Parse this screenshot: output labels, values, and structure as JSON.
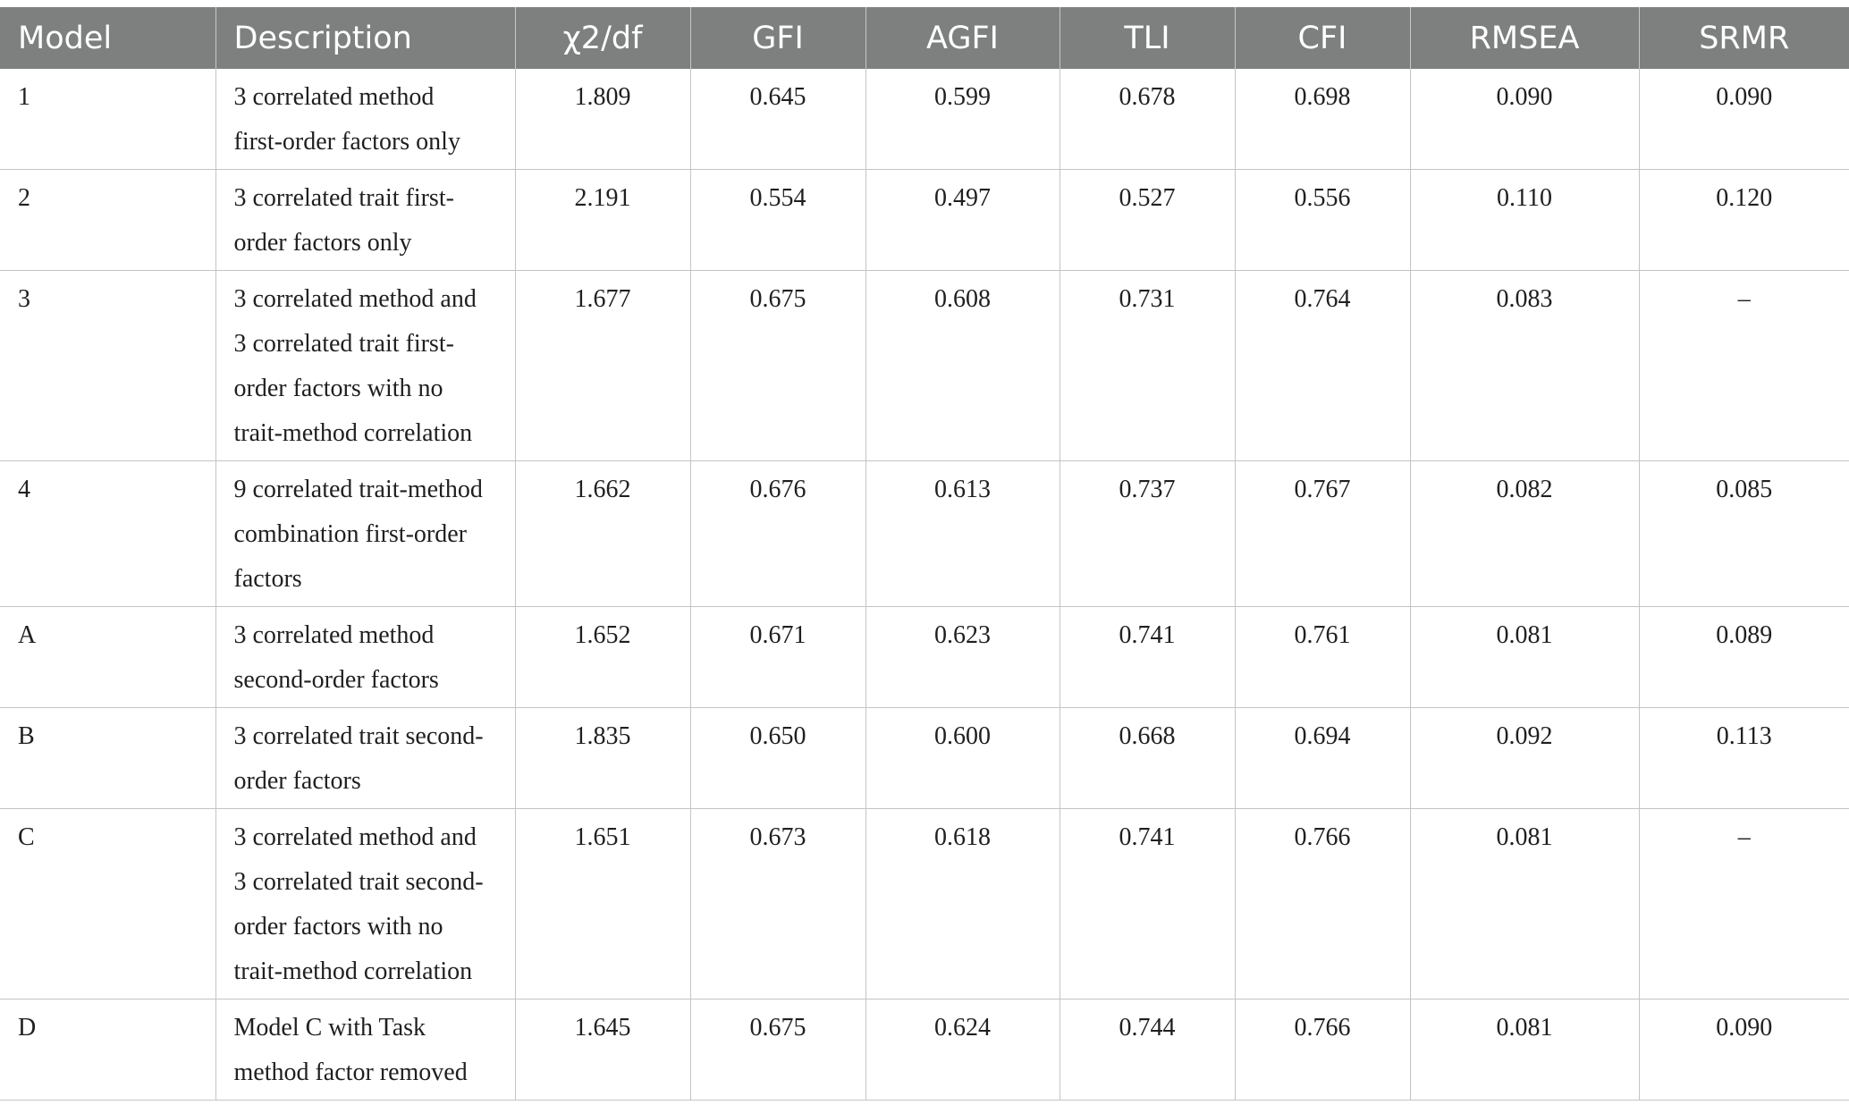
{
  "table": {
    "headers": [
      "Model",
      "Description",
      "χ2/df",
      "GFI",
      "AGFI",
      "TLI",
      "CFI",
      "RMSEA",
      "SRMR"
    ],
    "rows": [
      {
        "model": "1",
        "desc_lines": [
          "3 correlated method",
          "first-order factors only"
        ],
        "values": [
          "1.809",
          "0.645",
          "0.599",
          "0.678",
          "0.698",
          "0.090",
          "0.090"
        ]
      },
      {
        "model": "2",
        "desc_lines": [
          "3 correlated trait first-",
          "order factors only"
        ],
        "values": [
          "2.191",
          "0.554",
          "0.497",
          "0.527",
          "0.556",
          "0.110",
          "0.120"
        ]
      },
      {
        "model": "3",
        "desc_lines": [
          "3 correlated method and",
          "3 correlated trait first-",
          "order factors with no",
          "trait-method correlation"
        ],
        "values": [
          "1.677",
          "0.675",
          "0.608",
          "0.731",
          "0.764",
          "0.083",
          "–"
        ]
      },
      {
        "model": "4",
        "desc_lines": [
          "9 correlated trait-method",
          "combination first-order",
          "factors"
        ],
        "values": [
          "1.662",
          "0.676",
          "0.613",
          "0.737",
          "0.767",
          "0.082",
          "0.085"
        ]
      },
      {
        "model": "A",
        "desc_lines": [
          "3 correlated method",
          "second-order factors"
        ],
        "values": [
          "1.652",
          "0.671",
          "0.623",
          "0.741",
          "0.761",
          "0.081",
          "0.089"
        ]
      },
      {
        "model": "B",
        "desc_lines": [
          "3 correlated trait second-",
          "order factors"
        ],
        "values": [
          "1.835",
          "0.650",
          "0.600",
          "0.668",
          "0.694",
          "0.092",
          "0.113"
        ]
      },
      {
        "model": "C",
        "desc_lines": [
          "3 correlated method and",
          "3 correlated trait second-",
          "order factors with no",
          "trait-method correlation"
        ],
        "values": [
          "1.651",
          "0.673",
          "0.618",
          "0.741",
          "0.766",
          "0.081",
          "–"
        ]
      },
      {
        "model": "D",
        "desc_lines": [
          "Model C with Task",
          "method factor removed"
        ],
        "values": [
          "1.645",
          "0.675",
          "0.624",
          "0.744",
          "0.766",
          "0.081",
          "0.090"
        ]
      }
    ]
  }
}
